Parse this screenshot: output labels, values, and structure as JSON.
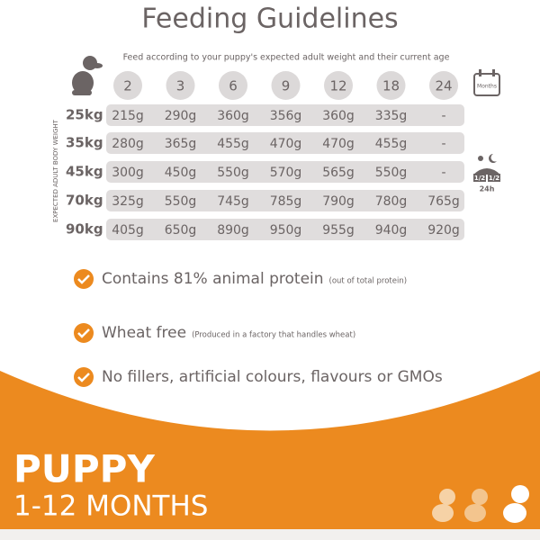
{
  "header": {
    "title": "Feeding Guidelines",
    "subtitle": "Feed according to your puppy's expected adult weight and their current age"
  },
  "table": {
    "axis_label": "EXPECTED ADULT BODY WEIGHT",
    "months_icon_label": "Months",
    "day_icon": {
      "morning": "1/2",
      "evening": "1/2",
      "period": "24h"
    },
    "columns": [
      "2",
      "3",
      "6",
      "9",
      "12",
      "18",
      "24"
    ],
    "rows": [
      {
        "weight": "25kg",
        "values": [
          "215g",
          "290g",
          "360g",
          "356g",
          "360g",
          "335g",
          "-"
        ]
      },
      {
        "weight": "35kg",
        "values": [
          "280g",
          "365g",
          "455g",
          "470g",
          "470g",
          "455g",
          "-"
        ]
      },
      {
        "weight": "45kg",
        "values": [
          "300g",
          "450g",
          "550g",
          "570g",
          "565g",
          "550g",
          "-"
        ]
      },
      {
        "weight": "70kg",
        "values": [
          "325g",
          "550g",
          "745g",
          "785g",
          "790g",
          "780g",
          "765g"
        ]
      },
      {
        "weight": "90kg",
        "values": [
          "405g",
          "650g",
          "890g",
          "950g",
          "955g",
          "940g",
          "920g"
        ]
      }
    ]
  },
  "features": [
    {
      "text": "Contains 81% animal protein",
      "note": "(out of total protein)"
    },
    {
      "text": "Wheat free",
      "note": "(Produced in a factory that handles wheat)"
    },
    {
      "text": "No fillers, artificial colours, flavours or GMOs"
    }
  ],
  "banner": {
    "title": "PUPPY",
    "subtitle": "1-12 MONTHS"
  }
}
